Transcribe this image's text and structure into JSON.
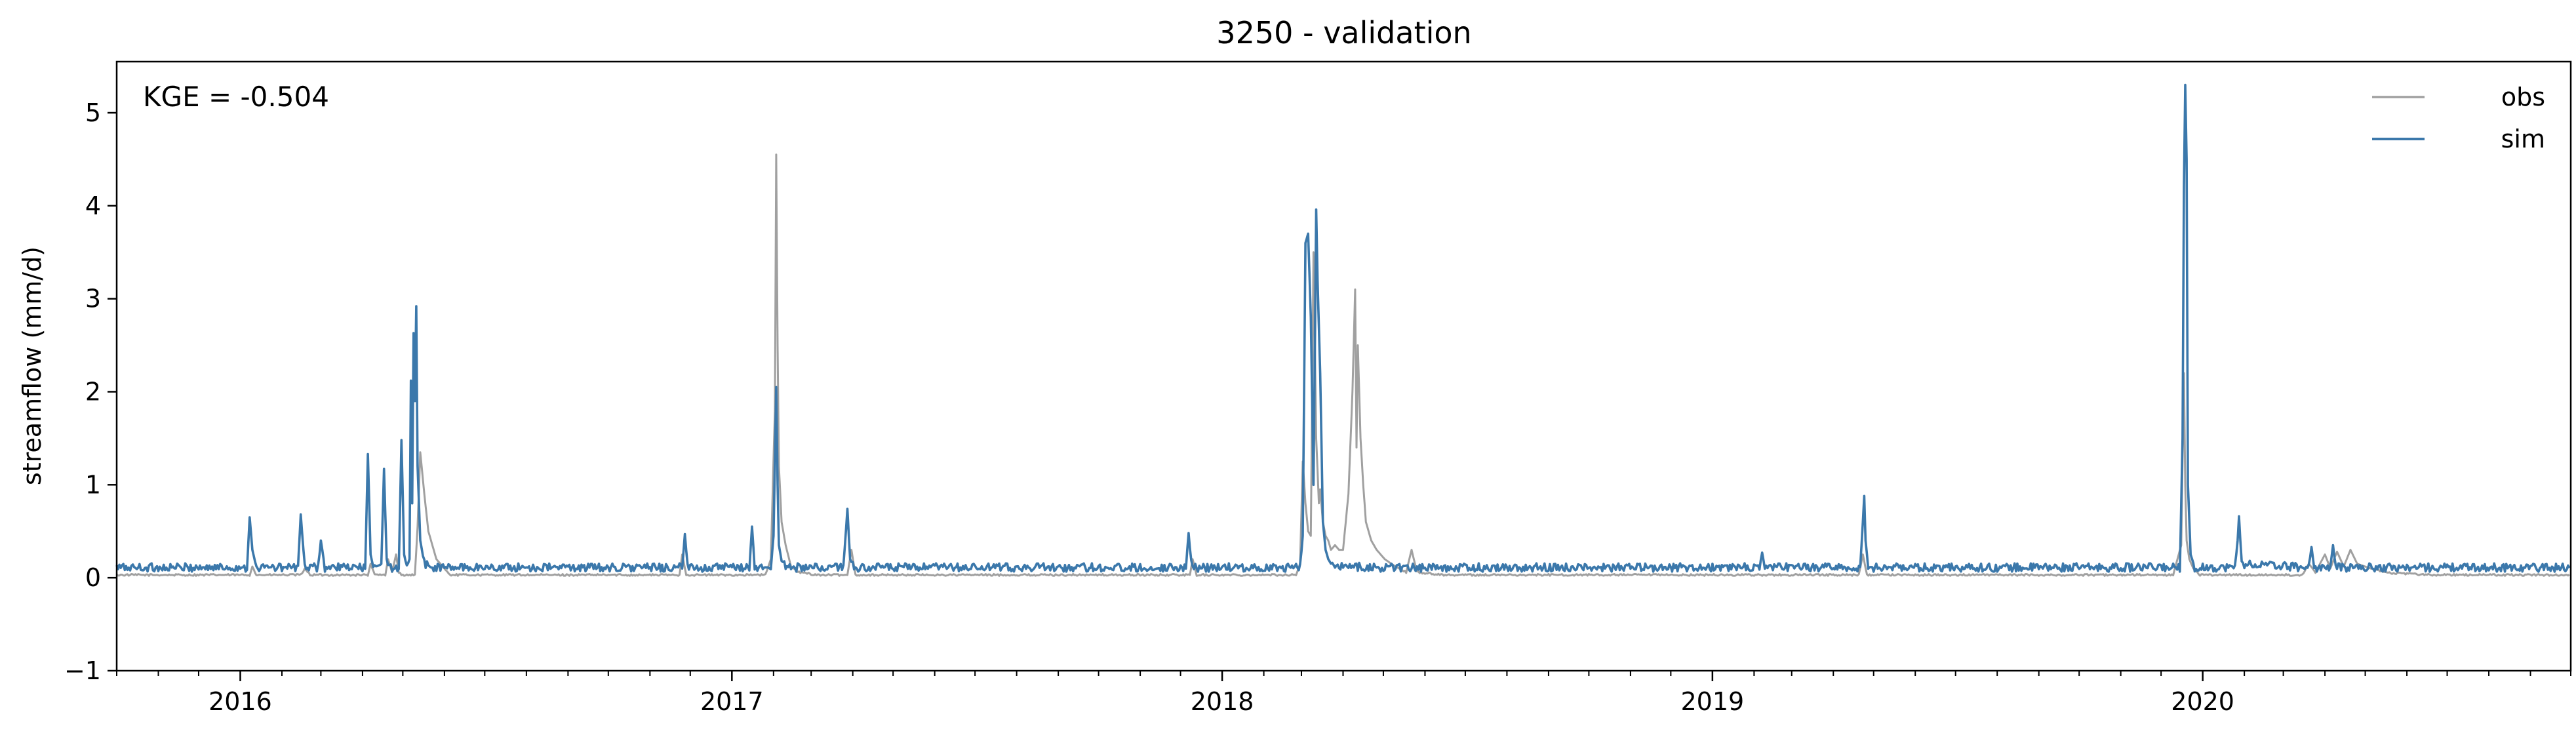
{
  "chart_data": {
    "type": "line",
    "title": "3250 - validation",
    "xlabel": "",
    "ylabel": "streamflow (mm/d)",
    "xlim": [
      "2015-10-01",
      "2020-09-30"
    ],
    "ylim": [
      -1,
      5.55
    ],
    "x_ticks": [
      "2016",
      "2017",
      "2018",
      "2019",
      "2020"
    ],
    "y_ticks": [
      "−1",
      "0",
      "1",
      "2",
      "3",
      "4",
      "5"
    ],
    "grid": false,
    "legend_position": "top-right",
    "annotation": "KGE = -0.504",
    "series": [
      {
        "name": "obs",
        "color": "#a0a0a0",
        "baseline": 0.03,
        "x": [
          "2015-10-01",
          "2016-01-08",
          "2016-01-10",
          "2016-01-13",
          "2016-02-15",
          "2016-02-18",
          "2016-02-22",
          "2016-04-05",
          "2016-04-07",
          "2016-04-10",
          "2016-04-18",
          "2016-04-20",
          "2016-04-23",
          "2016-04-26",
          "2016-04-28",
          "2016-05-01",
          "2016-05-10",
          "2016-05-12",
          "2016-05-14",
          "2016-05-17",
          "2016-05-20",
          "2016-05-26",
          "2016-06-05",
          "2016-11-23",
          "2016-11-25",
          "2016-11-28",
          "2017-01-26",
          "2017-01-30",
          "2017-02-02",
          "2017-02-03",
          "2017-02-04",
          "2017-02-05",
          "2017-02-07",
          "2017-02-10",
          "2017-02-14",
          "2017-02-20",
          "2017-03-05",
          "2017-03-28",
          "2017-03-31",
          "2017-04-03",
          "2017-12-08",
          "2017-12-10",
          "2017-12-13",
          "2018-02-25",
          "2018-02-28",
          "2018-03-02",
          "2018-03-04",
          "2018-03-06",
          "2018-03-08",
          "2018-03-10",
          "2018-03-12",
          "2018-03-14",
          "2018-03-15",
          "2018-03-17",
          "2018-03-19",
          "2018-03-21",
          "2018-03-23",
          "2018-03-26",
          "2018-03-29",
          "2018-04-01",
          "2018-04-05",
          "2018-04-08",
          "2018-04-10",
          "2018-04-11",
          "2018-04-12",
          "2018-04-14",
          "2018-04-16",
          "2018-04-18",
          "2018-04-22",
          "2018-04-26",
          "2018-05-02",
          "2018-05-10",
          "2018-05-18",
          "2018-05-22",
          "2018-05-26",
          "2018-06-15",
          "2018-07-15",
          "2019-04-20",
          "2019-04-23",
          "2019-04-26",
          "2019-12-10",
          "2019-12-16",
          "2019-12-18",
          "2019-12-19",
          "2019-12-20",
          "2019-12-22",
          "2019-12-25",
          "2019-12-30",
          "2020-03-15",
          "2020-03-20",
          "2020-03-25",
          "2020-04-01",
          "2020-04-05",
          "2020-04-10",
          "2020-04-15",
          "2020-04-20",
          "2020-04-25",
          "2020-05-05",
          "2020-05-20",
          "2020-06-20",
          "2020-09-30"
        ],
        "values": [
          0.03,
          0.03,
          0.12,
          0.03,
          0.03,
          0.1,
          0.03,
          0.03,
          0.15,
          0.03,
          0.03,
          0.2,
          0.06,
          0.25,
          0.05,
          0.03,
          0.03,
          0.55,
          1.35,
          0.9,
          0.5,
          0.2,
          0.03,
          0.03,
          0.25,
          0.03,
          0.03,
          0.2,
          1.8,
          4.55,
          2.5,
          1.2,
          0.6,
          0.35,
          0.12,
          0.06,
          0.03,
          0.03,
          0.3,
          0.03,
          0.03,
          0.2,
          0.03,
          0.03,
          0.15,
          1.25,
          0.8,
          0.5,
          0.45,
          3.5,
          1.5,
          0.8,
          0.95,
          0.6,
          0.45,
          0.4,
          0.3,
          0.35,
          0.3,
          0.3,
          0.9,
          2.0,
          3.1,
          1.4,
          2.5,
          1.5,
          1.0,
          0.6,
          0.4,
          0.3,
          0.2,
          0.12,
          0.06,
          0.3,
          0.06,
          0.03,
          0.03,
          0.03,
          0.25,
          0.03,
          0.03,
          0.35,
          2.2,
          1.0,
          0.4,
          0.2,
          0.1,
          0.03,
          0.03,
          0.15,
          0.06,
          0.25,
          0.1,
          0.28,
          0.12,
          0.3,
          0.15,
          0.1,
          0.05,
          0.03,
          0.03
        ]
      },
      {
        "name": "sim",
        "color": "#3b78ab",
        "baseline": 0.11,
        "x": [
          "2015-10-01",
          "2016-01-06",
          "2016-01-08",
          "2016-01-10",
          "2016-01-13",
          "2016-02-13",
          "2016-02-15",
          "2016-02-18",
          "2016-02-28",
          "2016-03-01",
          "2016-03-04",
          "2016-04-03",
          "2016-04-05",
          "2016-04-07",
          "2016-04-09",
          "2016-04-15",
          "2016-04-17",
          "2016-04-19",
          "2016-04-21",
          "2016-04-28",
          "2016-04-30",
          "2016-05-02",
          "2016-05-04",
          "2016-05-06",
          "2016-05-07",
          "2016-05-08",
          "2016-05-09",
          "2016-05-10",
          "2016-05-11",
          "2016-05-12",
          "2016-05-14",
          "2016-05-17",
          "2016-05-22",
          "2016-06-05",
          "2016-11-25",
          "2016-11-27",
          "2016-11-29",
          "2017-01-14",
          "2017-01-16",
          "2017-01-18",
          "2017-01-30",
          "2017-02-01",
          "2017-02-03",
          "2017-02-04",
          "2017-02-05",
          "2017-02-07",
          "2017-02-10",
          "2017-02-15",
          "2017-03-25",
          "2017-03-28",
          "2017-03-30",
          "2017-04-02",
          "2017-12-05",
          "2017-12-07",
          "2017-12-09",
          "2017-12-12",
          "2018-02-28",
          "2018-03-02",
          "2018-03-04",
          "2018-03-06",
          "2018-03-08",
          "2018-03-10",
          "2018-03-12",
          "2018-03-13",
          "2018-03-15",
          "2018-03-17",
          "2018-03-19",
          "2018-03-21",
          "2018-03-23",
          "2018-03-26",
          "2018-04-01",
          "2018-04-10",
          "2018-04-20",
          "2018-05-05",
          "2018-05-20",
          "2019-02-05",
          "2019-02-07",
          "2019-02-09",
          "2019-04-21",
          "2019-04-23",
          "2019-04-24",
          "2019-04-25",
          "2019-04-27",
          "2019-12-15",
          "2019-12-17",
          "2019-12-18",
          "2019-12-19",
          "2019-12-20",
          "2019-12-21",
          "2019-12-23",
          "2019-12-26",
          "2020-01-25",
          "2020-01-27",
          "2020-01-28",
          "2020-01-30",
          "2020-03-20",
          "2020-03-22",
          "2020-03-24",
          "2020-04-05",
          "2020-04-07",
          "2020-04-09",
          "2020-09-30"
        ],
        "values": [
          0.11,
          0.11,
          0.65,
          0.3,
          0.11,
          0.11,
          0.68,
          0.11,
          0.11,
          0.4,
          0.11,
          0.11,
          1.33,
          0.25,
          0.11,
          0.11,
          1.17,
          0.2,
          0.11,
          0.11,
          1.48,
          0.25,
          0.11,
          0.2,
          2.12,
          0.8,
          2.63,
          1.9,
          2.92,
          1.2,
          0.4,
          0.15,
          0.11,
          0.11,
          0.11,
          0.47,
          0.11,
          0.11,
          0.55,
          0.11,
          0.11,
          0.45,
          2.05,
          1.0,
          0.35,
          0.18,
          0.12,
          0.11,
          0.11,
          0.74,
          0.2,
          0.11,
          0.11,
          0.48,
          0.15,
          0.11,
          0.11,
          0.45,
          3.6,
          3.7,
          2.8,
          1.0,
          3.96,
          3.2,
          2.2,
          0.6,
          0.3,
          0.2,
          0.15,
          0.15,
          0.12,
          0.12,
          0.11,
          0.11,
          0.11,
          0.11,
          0.27,
          0.11,
          0.11,
          0.6,
          0.88,
          0.4,
          0.11,
          0.11,
          1.5,
          4.2,
          5.3,
          4.5,
          1.0,
          0.25,
          0.11,
          0.11,
          0.4,
          0.66,
          0.15,
          0.11,
          0.33,
          0.11,
          0.11,
          0.35,
          0.11,
          0.11
        ]
      }
    ]
  }
}
